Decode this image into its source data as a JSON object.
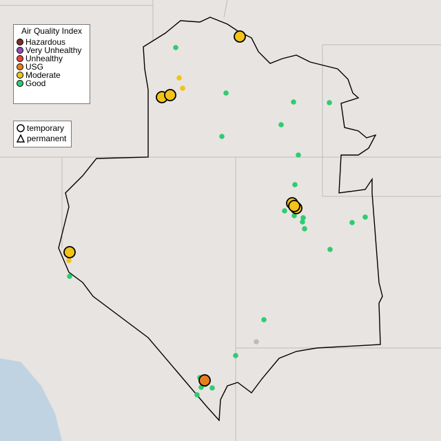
{
  "legend": {
    "title": "Air Quality Index",
    "categories": [
      {
        "label": "Hazardous",
        "color": "#7e2a2a"
      },
      {
        "label": "Very Unhealthy",
        "color": "#8e4fb5"
      },
      {
        "label": "Unhealthy",
        "color": "#e8473a"
      },
      {
        "label": "USG",
        "color": "#e87d1e"
      },
      {
        "label": "Moderate",
        "color": "#f2c318"
      },
      {
        "label": "Good",
        "color": "#2ecc71"
      }
    ]
  },
  "shape_legend": {
    "items": [
      {
        "label": "temporary",
        "icon": "circle-icon"
      },
      {
        "label": "permanent",
        "icon": "triangle-icon"
      }
    ]
  }
}
